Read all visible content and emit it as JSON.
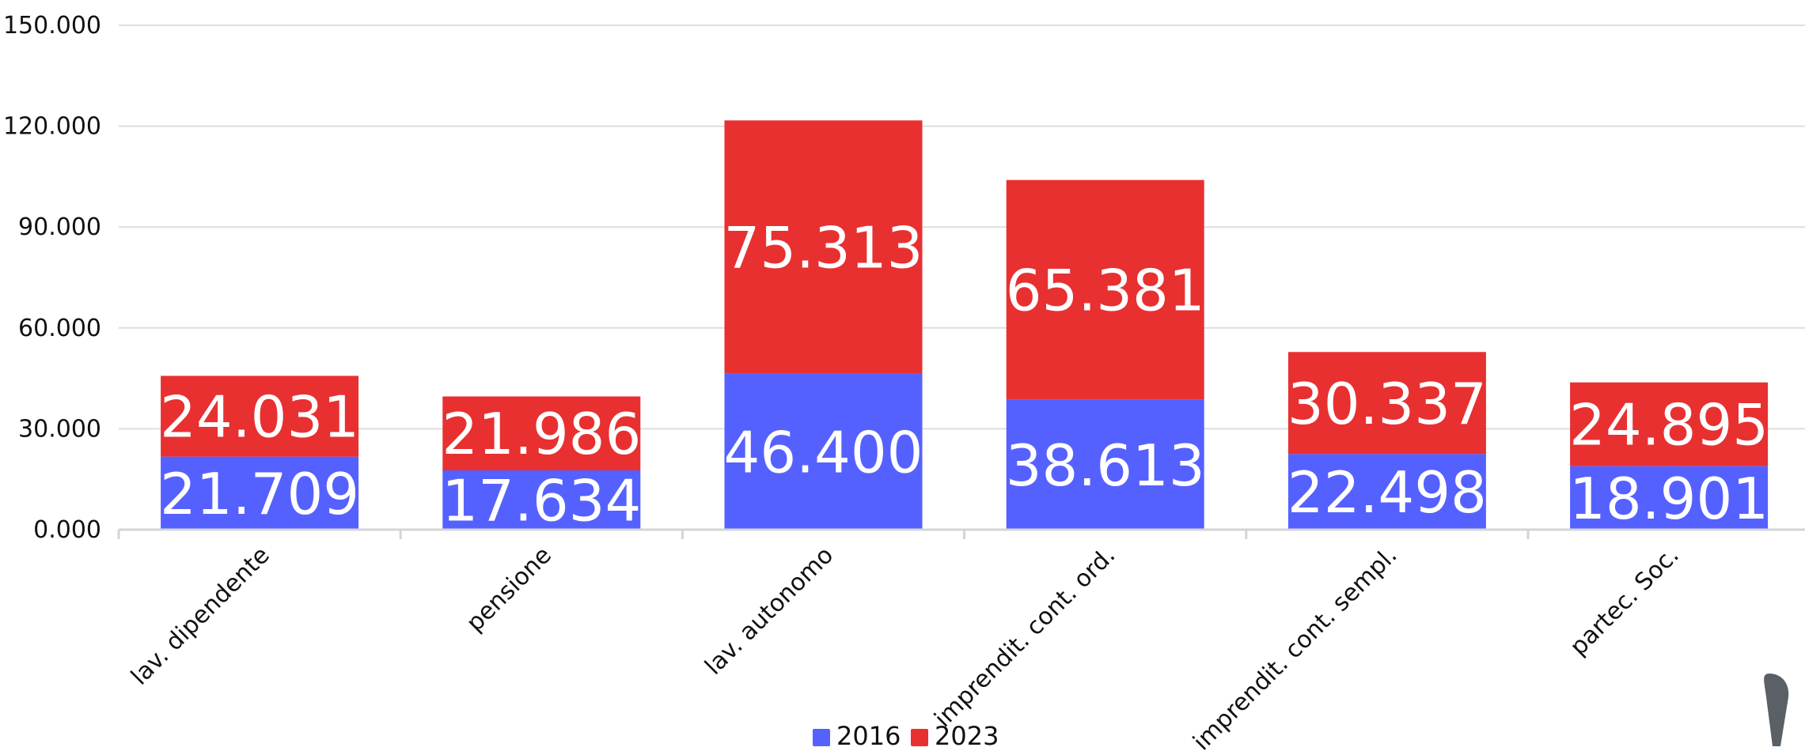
{
  "chart_data": {
    "type": "bar",
    "stacked": true,
    "categories": [
      "lav. dipendente",
      "pensione",
      "lav. autonomo",
      "imprendit. cont. ord.",
      "imprendit. cont. sempl.",
      "partec. Soc."
    ],
    "series": [
      {
        "name": "2016",
        "color": "#5561ff",
        "values": [
          21709,
          17634,
          46400,
          38613,
          22498,
          18901
        ],
        "labels": [
          "21.709",
          "17.634",
          "46.400",
          "38.613",
          "22.498",
          "18.901"
        ]
      },
      {
        "name": "2023",
        "color": "#e83031",
        "values": [
          24031,
          21986,
          75313,
          65381,
          30337,
          24895
        ],
        "labels": [
          "24.031",
          "21.986",
          "75.313",
          "65.381",
          "30.337",
          "24.895"
        ]
      }
    ],
    "yticks": [
      0,
      30000,
      60000,
      90000,
      120000,
      150000
    ],
    "ytick_labels": [
      "0.000",
      "30.000",
      "60.000",
      "90.000",
      "120.000",
      "150.000"
    ],
    "ylim": [
      0,
      150000
    ],
    "grid": true,
    "legend": "bottom-center",
    "title": "",
    "xlabel": "",
    "ylabel": ""
  },
  "icons": {
    "corner": "pin-icon"
  }
}
